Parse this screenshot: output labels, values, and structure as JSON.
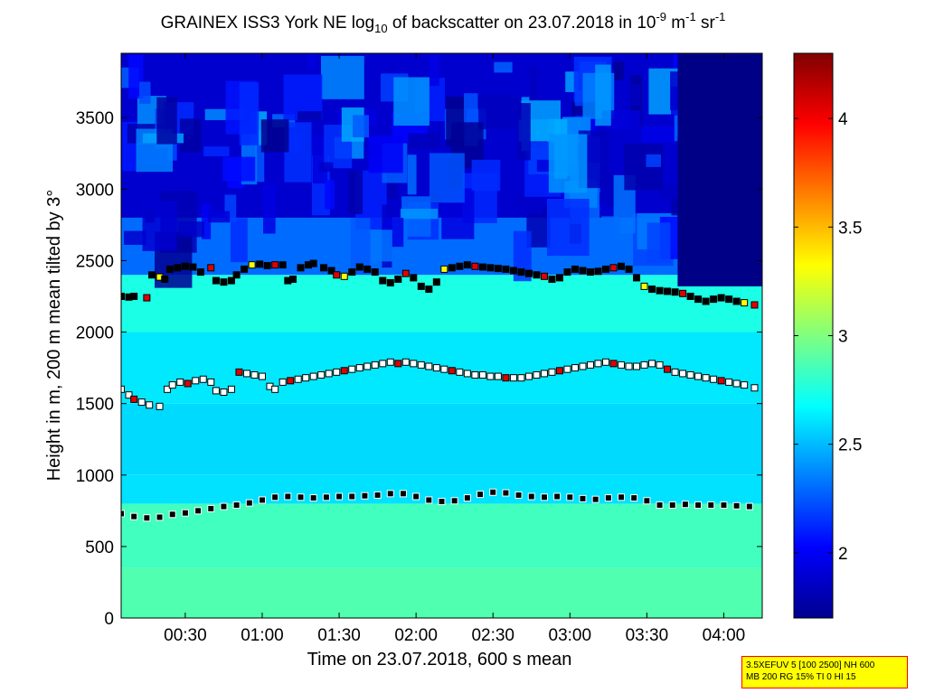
{
  "chart_data": {
    "type": "heatmap",
    "title": {
      "main": "GRAINEX ISS3 York NE log",
      "sub10": "10",
      "rest": " of backscatter on 23.07.2018 in 10",
      "sup1": "-9",
      "unit1": " m",
      "sup2": "-1",
      "unit2": " sr",
      "sup3": "-1"
    },
    "xlabel": "Time on 23.07.2018, 600 s mean",
    "ylabel": "Height in m, 200 m mean tilted by 3°",
    "x_unit": "minutes after 00:00",
    "xlim": [
      5,
      255
    ],
    "ylim": [
      0,
      3950
    ],
    "x_ticks": [
      {
        "value": 30,
        "label": "00:30"
      },
      {
        "value": 60,
        "label": "01:00"
      },
      {
        "value": 90,
        "label": "01:30"
      },
      {
        "value": 120,
        "label": "02:00"
      },
      {
        "value": 150,
        "label": "02:30"
      },
      {
        "value": 180,
        "label": "03:00"
      },
      {
        "value": 210,
        "label": "03:30"
      },
      {
        "value": 240,
        "label": "04:00"
      }
    ],
    "y_ticks": [
      {
        "value": 0,
        "label": "0"
      },
      {
        "value": 500,
        "label": "500"
      },
      {
        "value": 1000,
        "label": "1000"
      },
      {
        "value": 1500,
        "label": "1500"
      },
      {
        "value": 2000,
        "label": "2000"
      },
      {
        "value": 2500,
        "label": "2500"
      },
      {
        "value": 3000,
        "label": "3000"
      },
      {
        "value": 3500,
        "label": "3500"
      }
    ],
    "colorbar": {
      "colormap": "jet",
      "range": [
        1.7,
        4.3
      ],
      "ticks": [
        {
          "value": 2,
          "label": "2"
        },
        {
          "value": 2.5,
          "label": "2.5"
        },
        {
          "value": 3,
          "label": "3"
        },
        {
          "value": 3.5,
          "label": "3.5"
        },
        {
          "value": 4,
          "label": "4"
        }
      ]
    },
    "field": {
      "layers": [
        {
          "from": 0,
          "to": 350,
          "value": 2.88
        },
        {
          "from": 350,
          "to": 800,
          "value": 2.84
        },
        {
          "from": 800,
          "to": 1000,
          "value": 2.6
        },
        {
          "from": 1000,
          "to": 1500,
          "value": 2.58
        },
        {
          "from": 1500,
          "to": 2000,
          "value": 2.62
        },
        {
          "from": 2000,
          "to": 2400,
          "value": 2.74
        },
        {
          "from": 2400,
          "to": 2800,
          "value": 2.3
        },
        {
          "from": 2800,
          "to": 3950,
          "value": 1.9
        }
      ],
      "free_atmosphere_value": 1.72
    },
    "series": [
      {
        "name": "",
        "style": "lower",
        "points": [
          [
            5,
            730
          ],
          [
            10,
            710
          ],
          [
            15,
            700
          ],
          [
            20,
            705
          ],
          [
            25,
            725
          ],
          [
            30,
            735
          ],
          [
            35,
            750
          ],
          [
            40,
            765
          ],
          [
            45,
            780
          ],
          [
            50,
            790
          ],
          [
            55,
            805
          ],
          [
            60,
            825
          ],
          [
            65,
            845
          ],
          [
            70,
            850
          ],
          [
            75,
            845
          ],
          [
            80,
            840
          ],
          [
            85,
            845
          ],
          [
            90,
            850
          ],
          [
            95,
            850
          ],
          [
            100,
            855
          ],
          [
            105,
            860
          ],
          [
            110,
            870
          ],
          [
            115,
            870
          ],
          [
            120,
            850
          ],
          [
            125,
            825
          ],
          [
            130,
            815
          ],
          [
            135,
            820
          ],
          [
            140,
            840
          ],
          [
            145,
            865
          ],
          [
            150,
            880
          ],
          [
            155,
            875
          ],
          [
            160,
            860
          ],
          [
            165,
            850
          ],
          [
            170,
            845
          ],
          [
            175,
            850
          ],
          [
            180,
            845
          ],
          [
            185,
            835
          ],
          [
            190,
            830
          ],
          [
            195,
            840
          ],
          [
            200,
            845
          ],
          [
            205,
            840
          ],
          [
            210,
            820
          ],
          [
            215,
            790
          ],
          [
            220,
            790
          ],
          [
            225,
            795
          ],
          [
            230,
            790
          ],
          [
            235,
            790
          ],
          [
            240,
            790
          ],
          [
            245,
            785
          ],
          [
            250,
            780
          ]
        ]
      },
      {
        "name": "",
        "style": "upper",
        "points": [
          [
            5,
            2250
          ],
          [
            8,
            2245
          ],
          [
            10,
            2250
          ],
          [
            15,
            2240
          ],
          [
            17,
            2400
          ],
          [
            20,
            2385
          ],
          [
            22,
            2370
          ],
          [
            24,
            2440
          ],
          [
            27,
            2450
          ],
          [
            30,
            2460
          ],
          [
            33,
            2455
          ],
          [
            36,
            2420
          ],
          [
            40,
            2450
          ],
          [
            42,
            2360
          ],
          [
            45,
            2350
          ],
          [
            48,
            2360
          ],
          [
            50,
            2400
          ],
          [
            53,
            2440
          ],
          [
            56,
            2470
          ],
          [
            59,
            2475
          ],
          [
            62,
            2465
          ],
          [
            65,
            2470
          ],
          [
            68,
            2470
          ],
          [
            70,
            2360
          ],
          [
            72,
            2370
          ],
          [
            75,
            2450
          ],
          [
            78,
            2470
          ],
          [
            80,
            2480
          ],
          [
            84,
            2450
          ],
          [
            87,
            2430
          ],
          [
            89,
            2400
          ],
          [
            92,
            2390
          ],
          [
            95,
            2420
          ],
          [
            98,
            2455
          ],
          [
            101,
            2440
          ],
          [
            104,
            2420
          ],
          [
            107,
            2360
          ],
          [
            110,
            2345
          ],
          [
            113,
            2370
          ],
          [
            116,
            2410
          ],
          [
            119,
            2380
          ],
          [
            122,
            2320
          ],
          [
            125,
            2300
          ],
          [
            128,
            2350
          ],
          [
            131,
            2440
          ],
          [
            134,
            2450
          ],
          [
            137,
            2460
          ],
          [
            140,
            2470
          ],
          [
            143,
            2460
          ],
          [
            146,
            2455
          ],
          [
            149,
            2450
          ],
          [
            152,
            2445
          ],
          [
            155,
            2440
          ],
          [
            158,
            2430
          ],
          [
            161,
            2420
          ],
          [
            164,
            2410
          ],
          [
            167,
            2400
          ],
          [
            170,
            2390
          ],
          [
            173,
            2370
          ],
          [
            176,
            2380
          ],
          [
            179,
            2420
          ],
          [
            182,
            2440
          ],
          [
            185,
            2430
          ],
          [
            188,
            2420
          ],
          [
            191,
            2425
          ],
          [
            194,
            2440
          ],
          [
            197,
            2450
          ],
          [
            200,
            2460
          ],
          [
            203,
            2440
          ],
          [
            206,
            2380
          ],
          [
            209,
            2320
          ],
          [
            212,
            2300
          ],
          [
            215,
            2290
          ],
          [
            218,
            2285
          ],
          [
            221,
            2280
          ],
          [
            224,
            2270
          ],
          [
            227,
            2250
          ],
          [
            230,
            2230
          ],
          [
            233,
            2215
          ],
          [
            236,
            2230
          ],
          [
            239,
            2240
          ],
          [
            242,
            2230
          ],
          [
            245,
            2215
          ],
          [
            248,
            2205
          ],
          [
            252,
            2190
          ]
        ]
      },
      {
        "name": "",
        "style": "mid",
        "points": [
          [
            5,
            1600
          ],
          [
            8,
            1560
          ],
          [
            10,
            1530
          ],
          [
            13,
            1510
          ],
          [
            16,
            1490
          ],
          [
            20,
            1480
          ],
          [
            23,
            1600
          ],
          [
            25,
            1630
          ],
          [
            28,
            1650
          ],
          [
            31,
            1640
          ],
          [
            34,
            1660
          ],
          [
            37,
            1670
          ],
          [
            40,
            1650
          ],
          [
            42,
            1590
          ],
          [
            45,
            1580
          ],
          [
            48,
            1600
          ],
          [
            51,
            1720
          ],
          [
            54,
            1710
          ],
          [
            57,
            1700
          ],
          [
            60,
            1690
          ],
          [
            63,
            1620
          ],
          [
            65,
            1600
          ],
          [
            68,
            1650
          ],
          [
            71,
            1660
          ],
          [
            74,
            1670
          ],
          [
            77,
            1680
          ],
          [
            80,
            1690
          ],
          [
            83,
            1700
          ],
          [
            86,
            1710
          ],
          [
            89,
            1720
          ],
          [
            92,
            1730
          ],
          [
            95,
            1740
          ],
          [
            98,
            1750
          ],
          [
            101,
            1760
          ],
          [
            104,
            1770
          ],
          [
            107,
            1780
          ],
          [
            110,
            1790
          ],
          [
            113,
            1780
          ],
          [
            116,
            1790
          ],
          [
            119,
            1780
          ],
          [
            122,
            1770
          ],
          [
            125,
            1760
          ],
          [
            128,
            1750
          ],
          [
            131,
            1740
          ],
          [
            134,
            1730
          ],
          [
            137,
            1720
          ],
          [
            140,
            1710
          ],
          [
            143,
            1700
          ],
          [
            146,
            1700
          ],
          [
            149,
            1690
          ],
          [
            152,
            1690
          ],
          [
            155,
            1680
          ],
          [
            158,
            1680
          ],
          [
            161,
            1680
          ],
          [
            164,
            1690
          ],
          [
            167,
            1700
          ],
          [
            170,
            1710
          ],
          [
            173,
            1720
          ],
          [
            176,
            1730
          ],
          [
            179,
            1740
          ],
          [
            182,
            1750
          ],
          [
            185,
            1760
          ],
          [
            188,
            1770
          ],
          [
            191,
            1780
          ],
          [
            194,
            1790
          ],
          [
            197,
            1780
          ],
          [
            200,
            1770
          ],
          [
            203,
            1760
          ],
          [
            206,
            1760
          ],
          [
            209,
            1770
          ],
          [
            212,
            1780
          ],
          [
            215,
            1770
          ],
          [
            218,
            1740
          ],
          [
            221,
            1720
          ],
          [
            224,
            1710
          ],
          [
            227,
            1700
          ],
          [
            230,
            1690
          ],
          [
            233,
            1680
          ],
          [
            236,
            1670
          ],
          [
            239,
            1660
          ],
          [
            242,
            1650
          ],
          [
            245,
            1640
          ],
          [
            248,
            1630
          ],
          [
            252,
            1610
          ]
        ]
      }
    ]
  },
  "info_box": {
    "line1": "3.5XEFUV 5 [100 2500] NH 600",
    "line2": "MB 200 RG 15% TI 0 HI 15"
  }
}
